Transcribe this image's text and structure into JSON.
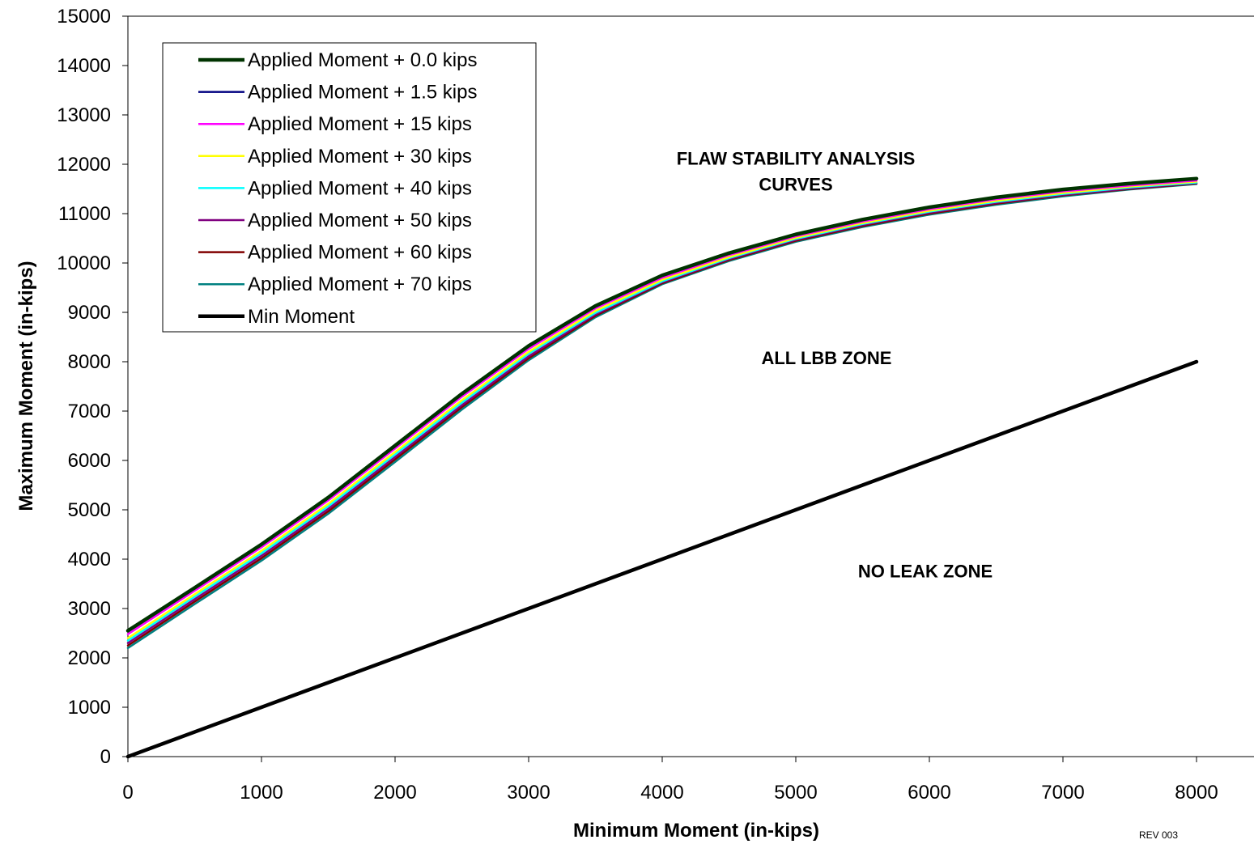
{
  "chart_data": {
    "type": "line",
    "xlabel": "Minimum Moment (in-kips)",
    "ylabel": "Maximum Moment (in-kips)",
    "xlim": [
      0,
      8000
    ],
    "ylim": [
      0,
      15000
    ],
    "xticks": [
      "0",
      "1000",
      "2000",
      "3000",
      "4000",
      "5000",
      "6000",
      "7000",
      "8000"
    ],
    "yticks": [
      "0",
      "1000",
      "2000",
      "3000",
      "4000",
      "5000",
      "6000",
      "7000",
      "8000",
      "9000",
      "10000",
      "11000",
      "12000",
      "13000",
      "14000",
      "15000"
    ],
    "grid": false,
    "legend_position": "top-left",
    "x": [
      0,
      500,
      1000,
      1500,
      2000,
      2500,
      3000,
      3500,
      4000,
      4500,
      5000,
      5500,
      6000,
      6500,
      7000,
      7500,
      8000
    ],
    "series": [
      {
        "name": "Applied Moment + 0.0 kips",
        "color": "#003300",
        "width": 4.5,
        "values": [
          2550,
          3420,
          4300,
          5250,
          6300,
          7350,
          8320,
          9130,
          9750,
          10200,
          10580,
          10880,
          11130,
          11330,
          11490,
          11610,
          11710
        ]
      },
      {
        "name": "Applied Moment + 1.5 kips",
        "color": "#000080",
        "width": 2.5,
        "values": [
          2540,
          3410,
          4290,
          5240,
          6290,
          7340,
          8310,
          9120,
          9740,
          10190,
          10570,
          10870,
          11120,
          11320,
          11480,
          11600,
          11700
        ]
      },
      {
        "name": "Applied Moment + 15 kips",
        "color": "#ff00ff",
        "width": 2.5,
        "values": [
          2480,
          3360,
          4240,
          5190,
          6240,
          7290,
          8260,
          9080,
          9700,
          10160,
          10540,
          10840,
          11090,
          11290,
          11450,
          11570,
          11670
        ]
      },
      {
        "name": "Applied Moment + 30 kips",
        "color": "#ffff00",
        "width": 2.5,
        "values": [
          2400,
          3290,
          4170,
          5120,
          6170,
          7220,
          8200,
          9030,
          9660,
          10120,
          10510,
          10810,
          11060,
          11260,
          11420,
          11550,
          11650
        ]
      },
      {
        "name": "Applied Moment + 40 kips",
        "color": "#00ffff",
        "width": 2.5,
        "values": [
          2350,
          3240,
          4120,
          5070,
          6120,
          7170,
          8160,
          8990,
          9630,
          10100,
          10490,
          10790,
          11040,
          11240,
          11400,
          11530,
          11630
        ]
      },
      {
        "name": "Applied Moment + 50 kips",
        "color": "#800080",
        "width": 2.5,
        "values": [
          2300,
          3190,
          4070,
          5020,
          6070,
          7120,
          8110,
          8960,
          9610,
          10080,
          10470,
          10770,
          11020,
          11220,
          11380,
          11510,
          11620
        ]
      },
      {
        "name": "Applied Moment + 60 kips",
        "color": "#800000",
        "width": 2.5,
        "values": [
          2250,
          3140,
          4020,
          4970,
          6020,
          7080,
          8070,
          8930,
          9590,
          10060,
          10450,
          10750,
          11000,
          11200,
          11370,
          11500,
          11610
        ]
      },
      {
        "name": "Applied Moment + 70 kips",
        "color": "#008080",
        "width": 2.5,
        "values": [
          2200,
          3090,
          3970,
          4920,
          5970,
          7030,
          8030,
          8900,
          9570,
          10040,
          10430,
          10730,
          10980,
          11180,
          11350,
          11490,
          11600
        ]
      },
      {
        "name": "Min Moment",
        "color": "#000000",
        "width": 4.5,
        "values": [
          0,
          500,
          1000,
          1500,
          2000,
          2500,
          3000,
          3500,
          4000,
          4500,
          5000,
          5500,
          6000,
          6500,
          7000,
          7500,
          8000
        ]
      }
    ],
    "annotations": [
      {
        "id": "annot-flaw-1",
        "text": "FLAW STABILITY ANALYSIS",
        "x": 5000,
        "y": 11990
      },
      {
        "id": "annot-flaw-2",
        "text": "CURVES",
        "x": 5000,
        "y": 11470
      },
      {
        "id": "annot-lbb",
        "text": "ALL LBB ZONE",
        "x": 5230,
        "y": 7950
      },
      {
        "id": "annot-noleak",
        "text": "NO LEAK ZONE",
        "x": 5970,
        "y": 3630
      }
    ]
  },
  "revision": "REV 003"
}
